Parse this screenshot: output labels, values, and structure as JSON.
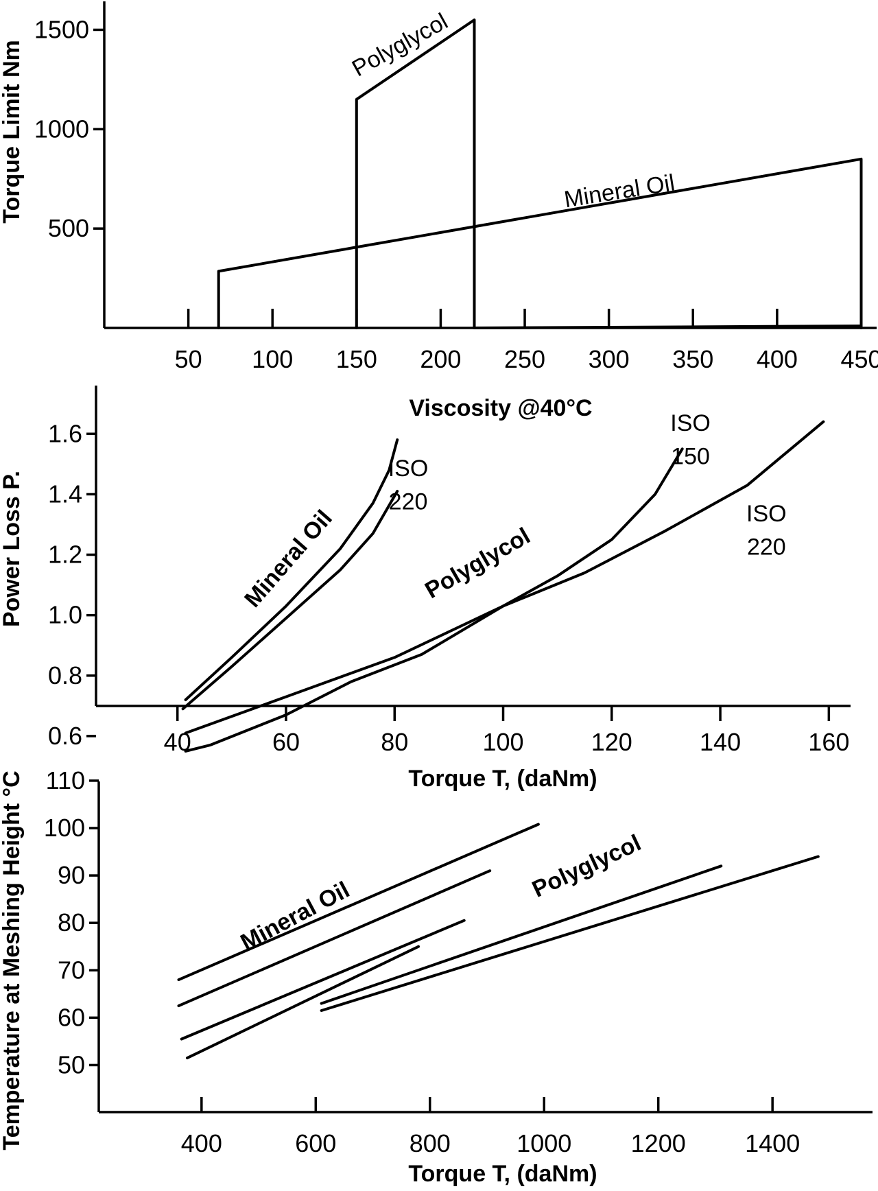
{
  "chart_data": [
    {
      "type": "line",
      "xlabel": "Viscosity @40°C",
      "ylabel": "Torque Limit Nm",
      "xlim": [
        0,
        460
      ],
      "ylim": [
        0,
        1650
      ],
      "xticks": [
        50,
        100,
        150,
        200,
        250,
        300,
        350,
        400,
        450
      ],
      "yticks": [
        500,
        1000,
        1500
      ],
      "grid": false,
      "series": [
        {
          "name": "Polyglycol",
          "points": [
            [
              150,
              0
            ],
            [
              150,
              1150
            ],
            [
              220,
              1550
            ],
            [
              220,
              0
            ]
          ]
        },
        {
          "name": "Mineral Oil",
          "points": [
            [
              68,
              0
            ],
            [
              68,
              285
            ],
            [
              450,
              850
            ],
            [
              450,
              0
            ]
          ]
        },
        {
          "points": [
            [
              220,
              0
            ],
            [
              450,
              10
            ]
          ]
        }
      ],
      "annotations": [
        {
          "text": "Polyglycol",
          "x": 178,
          "y": 1390,
          "rotate": -29
        },
        {
          "text": "Mineral Oil",
          "x": 307,
          "y": 650,
          "rotate": -9
        }
      ]
    },
    {
      "type": "line",
      "xlabel": "Torque T, (daNm)",
      "ylabel": "Power Loss P.",
      "xlim": [
        25,
        164
      ],
      "ylim": [
        0.4,
        1.78
      ],
      "xticks": [
        40,
        60,
        80,
        100,
        120,
        140,
        160
      ],
      "yticks": [
        "0.6",
        "0.8",
        "1.0",
        "1.2",
        "1.4",
        "1.6"
      ],
      "grid": false,
      "series": [
        {
          "points": [
            [
              41.5,
              0.72
            ],
            [
              50,
              0.86
            ],
            [
              60,
              1.03
            ],
            [
              70,
              1.22
            ],
            [
              76,
              1.37
            ],
            [
              79,
              1.48
            ],
            [
              80.5,
              1.58
            ]
          ]
        },
        {
          "points": [
            [
              41,
              0.69
            ],
            [
              50,
              0.83
            ],
            [
              60,
              0.99
            ],
            [
              70,
              1.15
            ],
            [
              76,
              1.27
            ],
            [
              80.5,
              1.41
            ]
          ]
        },
        {
          "points": [
            [
              41.5,
              0.61
            ],
            [
              60,
              0.73
            ],
            [
              80,
              0.86
            ],
            [
              100,
              1.03
            ],
            [
              110,
              1.13
            ],
            [
              120,
              1.25
            ],
            [
              128,
              1.4
            ],
            [
              133,
              1.55
            ]
          ]
        },
        {
          "points": [
            [
              41.5,
              0.55
            ],
            [
              46,
              0.57
            ],
            [
              60,
              0.67
            ],
            [
              72,
              0.78
            ],
            [
              85,
              0.87
            ],
            [
              100,
              1.03
            ],
            [
              115,
              1.14
            ],
            [
              130,
              1.28
            ],
            [
              145,
              1.43
            ],
            [
              159,
              1.64
            ]
          ]
        }
      ],
      "annotations": [
        {
          "text": "Mineral Oil",
          "x": 61.5,
          "y": 1.17,
          "rotate": -49,
          "bold": true
        },
        {
          "text": "ISO",
          "x": 82.5,
          "y": 1.46,
          "rotate": 0
        },
        {
          "text": "220",
          "x": 82.5,
          "y": 1.35,
          "rotate": 0
        },
        {
          "text": "Polyglycol",
          "x": 96,
          "y": 1.15,
          "rotate": -30,
          "bold": true
        },
        {
          "text": "ISO",
          "x": 134.5,
          "y": 1.61,
          "rotate": 0
        },
        {
          "text": "150",
          "x": 134.5,
          "y": 1.5,
          "rotate": 0
        },
        {
          "text": "ISO",
          "x": 148.5,
          "y": 1.31,
          "rotate": 0
        },
        {
          "text": "220",
          "x": 148.5,
          "y": 1.2,
          "rotate": 0
        }
      ]
    },
    {
      "type": "line",
      "xlabel": "Torque T, (daNm)",
      "ylabel": "Temperature at Meshing Height °C",
      "xlim": [
        220,
        1580
      ],
      "ylim": [
        39.5,
        111
      ],
      "xticks": [
        400,
        600,
        800,
        1000,
        1200,
        1400
      ],
      "yticks": [
        50,
        60,
        70,
        80,
        90,
        100,
        110
      ],
      "grid": false,
      "series": [
        {
          "points": [
            [
              360,
              68
            ],
            [
              990,
              100.8
            ]
          ]
        },
        {
          "points": [
            [
              360,
              62.5
            ],
            [
              905,
              91
            ]
          ]
        },
        {
          "points": [
            [
              365,
              55.5
            ],
            [
              860,
              80.5
            ]
          ]
        },
        {
          "points": [
            [
              375,
              51.5
            ],
            [
              780,
              75
            ]
          ]
        },
        {
          "points": [
            [
              610,
              63
            ],
            [
              1310,
              92
            ]
          ]
        },
        {
          "points": [
            [
              610,
              61.5
            ],
            [
              1480,
              94
            ]
          ]
        }
      ],
      "annotations": [
        {
          "text": "Mineral Oil",
          "x": 570,
          "y": 80,
          "rotate": -28,
          "bold": true
        },
        {
          "text": "Polyglycol",
          "x": 1080,
          "y": 90.5,
          "rotate": -25,
          "bold": true
        }
      ]
    }
  ]
}
